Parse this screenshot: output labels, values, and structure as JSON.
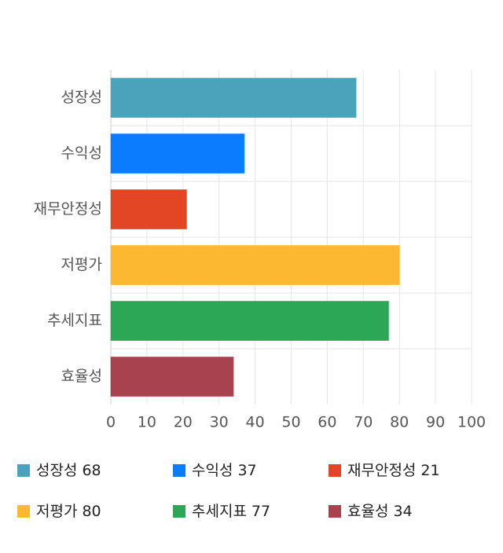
{
  "chart_data": {
    "type": "hbar",
    "categories": [
      "성장성",
      "수익성",
      "재무안정성",
      "저평가",
      "추세지표",
      "효율성"
    ],
    "values": [
      68,
      37,
      21,
      80,
      77,
      34
    ],
    "colors": [
      "#4aa3ba",
      "#0a7cff",
      "#e34625",
      "#fdb832",
      "#2ba755",
      "#a6434f"
    ],
    "xlim": [
      0,
      100
    ],
    "xticks": [
      0,
      10,
      20,
      30,
      40,
      50,
      60,
      70,
      80,
      90,
      100
    ],
    "grid": true,
    "legend": "bottom"
  }
}
